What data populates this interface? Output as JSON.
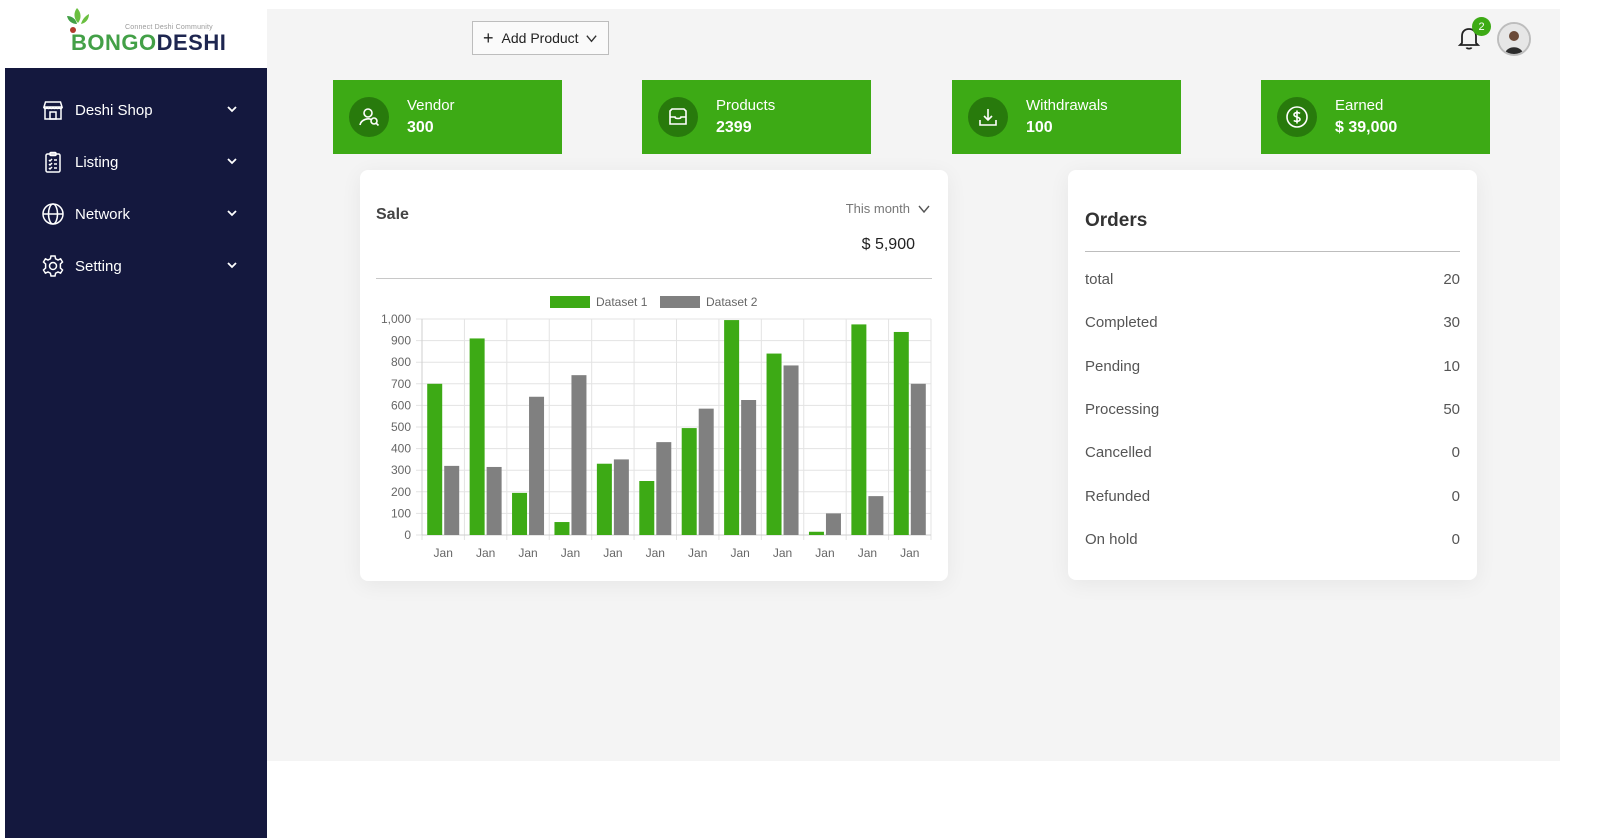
{
  "logo": {
    "tagline": "Connect Deshi Community",
    "word_part1": "BONGO",
    "word_part2": "DESHI"
  },
  "sidebar": {
    "items": [
      {
        "label": "Deshi Shop",
        "icon": "store-icon"
      },
      {
        "label": "Listing",
        "icon": "clipboard-list-icon"
      },
      {
        "label": "Network",
        "icon": "globe-icon"
      },
      {
        "label": "Setting",
        "icon": "gear-icon"
      }
    ]
  },
  "header": {
    "add_product_label": "Add Product",
    "notification_count": "2"
  },
  "stats": [
    {
      "label": "Vendor",
      "value": "300",
      "icon": "users-icon"
    },
    {
      "label": "Products",
      "value": "2399",
      "icon": "inbox-icon"
    },
    {
      "label": "Withdrawals",
      "value": "100",
      "icon": "download-icon"
    },
    {
      "label": "Earned",
      "value": "$ 39,000",
      "icon": "dollar-icon"
    }
  ],
  "sale": {
    "title": "Sale",
    "period": "This month",
    "amount": "$ 5,900"
  },
  "orders": {
    "title": "Orders",
    "rows": [
      {
        "label": "total",
        "value": "20"
      },
      {
        "label": "Completed",
        "value": "30"
      },
      {
        "label": "Pending",
        "value": "10"
      },
      {
        "label": "Processing",
        "value": "50"
      },
      {
        "label": "Cancelled",
        "value": "0"
      },
      {
        "label": "Refunded",
        "value": "0"
      },
      {
        "label": "On hold",
        "value": "0"
      }
    ]
  },
  "colors": {
    "sidebar": "#14183e",
    "accent": "#3daa15",
    "accent_dark": "#287a0c",
    "dataset2": "#808080"
  },
  "chart_data": {
    "type": "bar",
    "categories": [
      "Jan",
      "Jan",
      "Jan",
      "Jan",
      "Jan",
      "Jan",
      "Jan",
      "Jan",
      "Jan",
      "Jan",
      "Jan",
      "Jan"
    ],
    "series": [
      {
        "name": "Dataset 1",
        "color": "#3daa15",
        "values": [
          700,
          910,
          195,
          60,
          330,
          250,
          495,
          995,
          840,
          15,
          975,
          940
        ]
      },
      {
        "name": "Dataset 2",
        "color": "#808080",
        "values": [
          320,
          315,
          640,
          740,
          350,
          430,
          585,
          625,
          785,
          100,
          180,
          700
        ]
      }
    ],
    "yticks": [
      "0",
      "100",
      "200",
      "300",
      "400",
      "500",
      "600",
      "700",
      "800",
      "900",
      "1,000"
    ],
    "ylim": [
      0,
      1000
    ],
    "grid": true,
    "legend": "top"
  }
}
